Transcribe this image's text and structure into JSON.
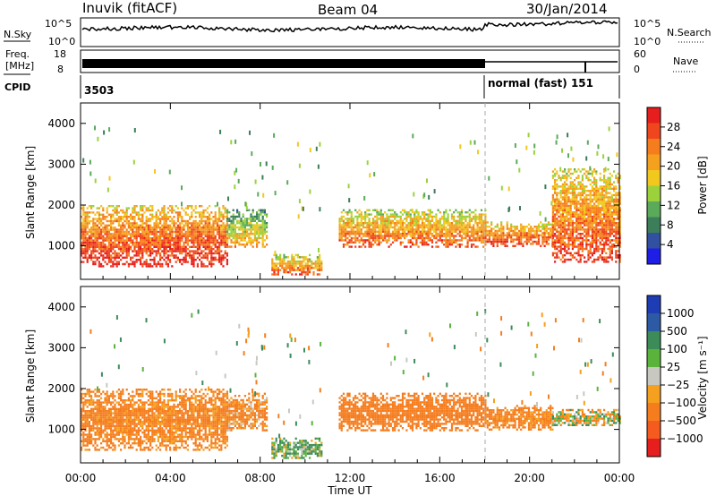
{
  "header": {
    "station": "Inuvik (fitACF)",
    "beam": "Beam 04",
    "date": "30/Jan/2014"
  },
  "top_panels": {
    "nsky_label": "N.Sky",
    "nsearch_label": "N.Search",
    "nsky_ticks": [
      "10^5",
      "10^0"
    ],
    "nsearch_ticks": [
      "10^5",
      "10^0"
    ],
    "freq_label_1": "Freq.",
    "freq_label_2": "[MHz]",
    "freq_ticks": [
      "18",
      "8"
    ],
    "nave_label": "Nave",
    "nave_ticks": [
      "60",
      "0"
    ],
    "cpid_label": "CPID",
    "cpid_left": "3503",
    "cpid_right": "normal (fast) 151"
  },
  "power_colorbar": {
    "title": "Power [dB]",
    "ticks": [
      "28",
      "24",
      "20",
      "16",
      "12",
      "8",
      "4"
    ],
    "colors": [
      "#e61e1e",
      "#f0461e",
      "#f57d1e",
      "#f5a01e",
      "#f0c81e",
      "#9bd23c",
      "#5aaa5a",
      "#3c7d5a",
      "#3250a0",
      "#1e1ee6"
    ]
  },
  "velocity_colorbar": {
    "title": "Velocity [m s⁻¹]",
    "ticks": [
      "1000",
      "500",
      "100",
      "25",
      "−25",
      "−100",
      "−500",
      "−1000"
    ],
    "colors": [
      "#1e3cb4",
      "#2d5aa5",
      "#3c8c5a",
      "#5ab43c",
      "#c8c8c0",
      "#f5a01e",
      "#f57d1e",
      "#f55a1e",
      "#e61e1e"
    ]
  },
  "axes": {
    "ylabel": "Slant Range [km]",
    "xlabel": "Time UT",
    "yticks": [
      "4000",
      "3000",
      "2000",
      "1000"
    ],
    "xticks": [
      "00:00",
      "04:00",
      "08:00",
      "12:00",
      "16:00",
      "20:00",
      "00:00"
    ]
  },
  "chart_data": [
    {
      "type": "heatmap",
      "title": "Power",
      "xlabel": "Time UT",
      "ylabel": "Slant Range [km]",
      "x_range": [
        "00:00",
        "24:00"
      ],
      "ylim": [
        180,
        4500
      ],
      "colorbar_label": "Power [dB]",
      "colorbar_range": [
        0,
        32
      ],
      "mode_change_time": "18:00",
      "echo_bands": [
        {
          "t_start": 0.0,
          "t_end": 6.5,
          "range_low": 500,
          "range_high": 2000,
          "power": 24
        },
        {
          "t_start": 6.5,
          "t_end": 8.3,
          "range_low": 1000,
          "range_high": 1900,
          "power": 14
        },
        {
          "t_start": 8.5,
          "t_end": 10.7,
          "range_low": 300,
          "range_high": 800,
          "power": 20
        },
        {
          "t_start": 11.5,
          "t_end": 18.0,
          "range_low": 1000,
          "range_high": 1900,
          "power": 20
        },
        {
          "t_start": 18.0,
          "t_end": 21.0,
          "range_low": 1000,
          "range_high": 1600,
          "power": 22
        },
        {
          "t_start": 21.0,
          "t_end": 24.0,
          "range_low": 600,
          "range_high": 2900,
          "power": 22
        }
      ]
    },
    {
      "type": "heatmap",
      "title": "Velocity",
      "xlabel": "Time UT",
      "ylabel": "Slant Range [km]",
      "x_range": [
        "00:00",
        "24:00"
      ],
      "ylim": [
        180,
        4500
      ],
      "colorbar_label": "Velocity [m s⁻¹]",
      "colorbar_range": [
        -1000,
        1000
      ],
      "mode_change_time": "18:00",
      "echo_bands": [
        {
          "t_start": 0.0,
          "t_end": 6.5,
          "range_low": 500,
          "range_high": 2000,
          "velocity": -200
        },
        {
          "t_start": 6.5,
          "t_end": 8.3,
          "range_low": 1000,
          "range_high": 1900,
          "velocity": -150
        },
        {
          "t_start": 8.5,
          "t_end": 10.7,
          "range_low": 300,
          "range_high": 800,
          "velocity": 100
        },
        {
          "t_start": 11.5,
          "t_end": 18.0,
          "range_low": 1000,
          "range_high": 1900,
          "velocity": -300
        },
        {
          "t_start": 18.0,
          "t_end": 21.0,
          "range_low": 1000,
          "range_high": 1600,
          "velocity": -200
        },
        {
          "t_start": 21.0,
          "t_end": 24.0,
          "range_low": 1100,
          "range_high": 1500,
          "velocity": 0
        }
      ]
    }
  ]
}
